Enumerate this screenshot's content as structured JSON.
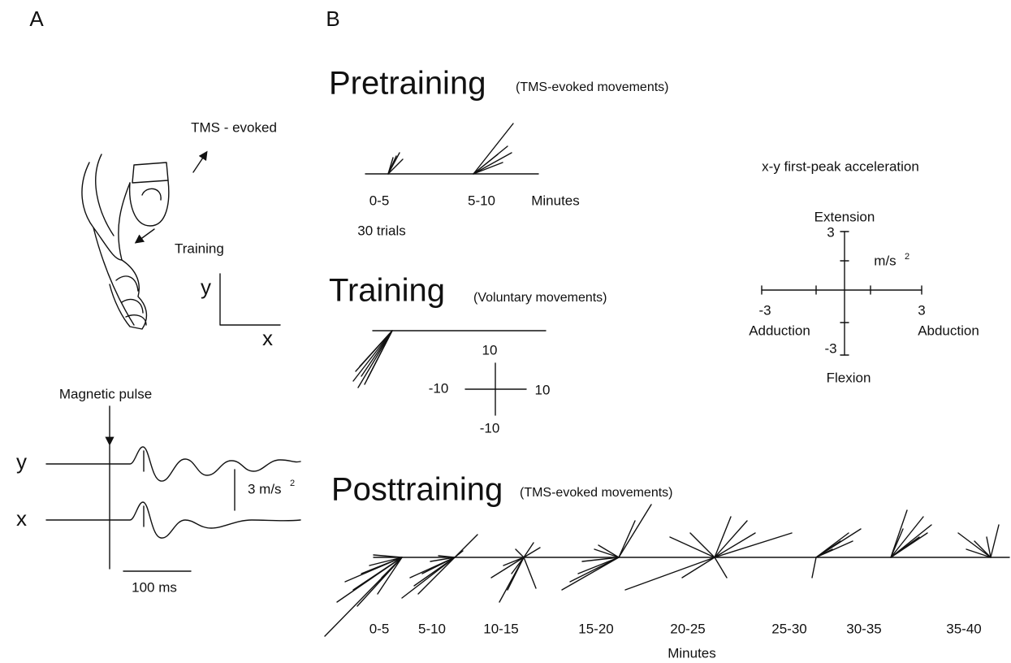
{
  "panel_a": {
    "label": "A",
    "hand": {
      "tms_label": "TMS - evoked",
      "training_label": "Training",
      "axis_y": "y",
      "axis_x": "x"
    },
    "traces": {
      "pulse_label": "Magnetic pulse",
      "y_label": "y",
      "x_label": "x",
      "scale_y": "3 m/s",
      "scale_y_sup": "2",
      "scale_x": "100 ms"
    }
  },
  "panel_b": {
    "label": "B",
    "pretraining": {
      "title": "Pretraining",
      "subtitle": "(TMS-evoked movements)",
      "bins": [
        "0-5",
        "5-10"
      ],
      "axis_label": "Minutes",
      "note": "30 trials"
    },
    "training": {
      "title": "Training",
      "subtitle": "(Voluntary  movements)",
      "scale_top": "10",
      "scale_left": "-10",
      "scale_right": "10",
      "scale_bottom": "-10"
    },
    "legend": {
      "title": "x-y first-peak acceleration",
      "top_label": "Extension",
      "top_value": "3",
      "unit": "m/s",
      "unit_sup": "2",
      "left_value": "-3",
      "right_value": "3",
      "left_label": "Adduction",
      "right_label": "Abduction",
      "bottom_value": "-3",
      "bottom_label": "Flexion"
    },
    "posttraining": {
      "title": "Posttraining",
      "subtitle": "(TMS-evoked movements)",
      "bins": [
        "0-5",
        "5-10",
        "10-15",
        "15-20",
        "20-25",
        "25-30",
        "30-35",
        "35-40"
      ],
      "axis_label": "Minutes"
    }
  }
}
